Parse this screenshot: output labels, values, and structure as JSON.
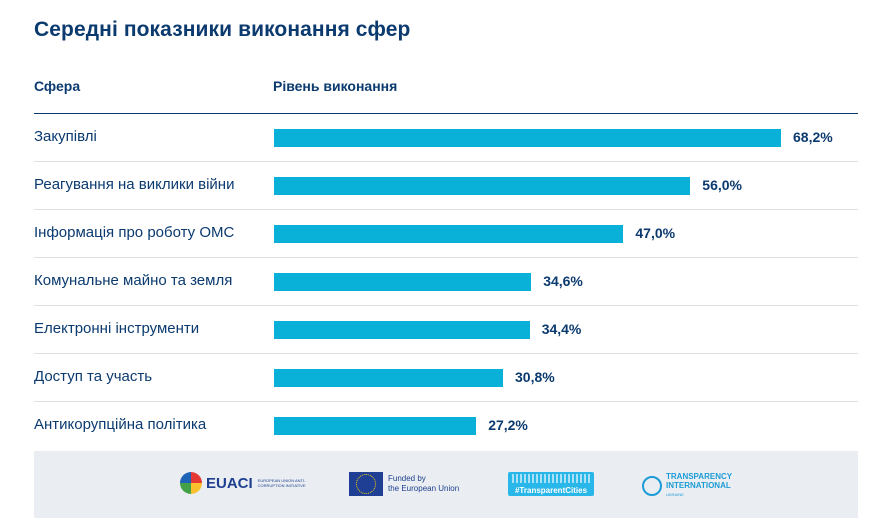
{
  "header": {
    "title": "Середні показники виконання сфер",
    "col_sphere": "Сфера",
    "col_level": "Рівень виконання"
  },
  "chart_data": {
    "type": "bar",
    "orientation": "horizontal",
    "title": "Середні показники виконання сфер",
    "xlabel": "Рівень виконання",
    "ylabel": "Сфера",
    "xlim": [
      0,
      75
    ],
    "categories": [
      "Закупівлі",
      "Реагування на виклики війни",
      "Інформація про роботу ОМС",
      "Комунальне майно та земля",
      "Електронні інструменти",
      "Доступ та участь",
      "Антикорупційна політика"
    ],
    "values": [
      68.2,
      56.0,
      47.0,
      34.6,
      34.4,
      30.8,
      27.2
    ],
    "value_labels": [
      "68,2%",
      "56,0%",
      "47,0%",
      "34,6%",
      "34,4%",
      "30,8%",
      "27,2%"
    ],
    "bar_color": "#09b1d8",
    "text_color": "#0b3a6f"
  },
  "footer": {
    "euaci_word": "EUACI",
    "euaci_sub": "EUROPEAN UNION ANTI-CORRUPTION INITIATIVE",
    "eu_line1": "Funded by",
    "eu_line2": "the European Union",
    "tc_label": "#TransparentCities",
    "ti_line1": "TRANSPARENCY",
    "ti_line2": "INTERNATIONAL",
    "ti_line3": "UKRAINE"
  }
}
